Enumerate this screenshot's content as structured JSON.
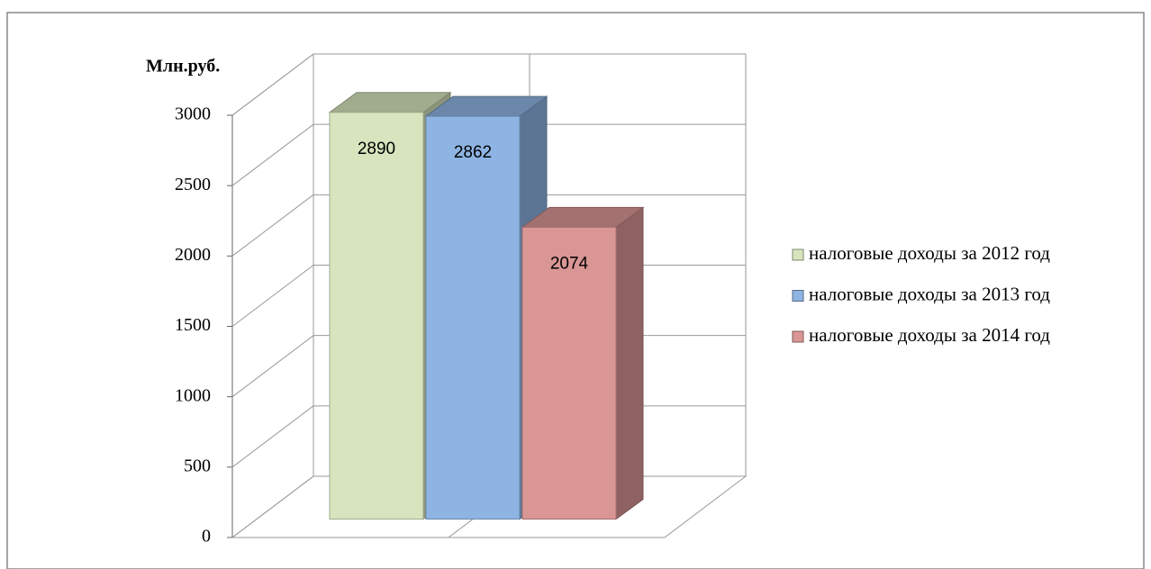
{
  "chart_data": {
    "type": "bar3d",
    "y_label": "Млн.руб.",
    "categories": [
      null
    ],
    "series": [
      {
        "name": "налоговые доходы за 2012 год",
        "color": "#d7e4bd",
        "values": [
          2890
        ]
      },
      {
        "name": "налоговые доходы за 2013 год",
        "color": "#8eb4e3",
        "values": [
          2862
        ]
      },
      {
        "name": "налоговые доходы за 2014 год",
        "color": "#d99694",
        "values": [
          2074
        ]
      }
    ],
    "ylim": [
      0,
      3000
    ],
    "yticks": [
      0,
      500,
      1000,
      1500,
      2000,
      2500,
      3000
    ],
    "grid": true,
    "legend": "right"
  }
}
